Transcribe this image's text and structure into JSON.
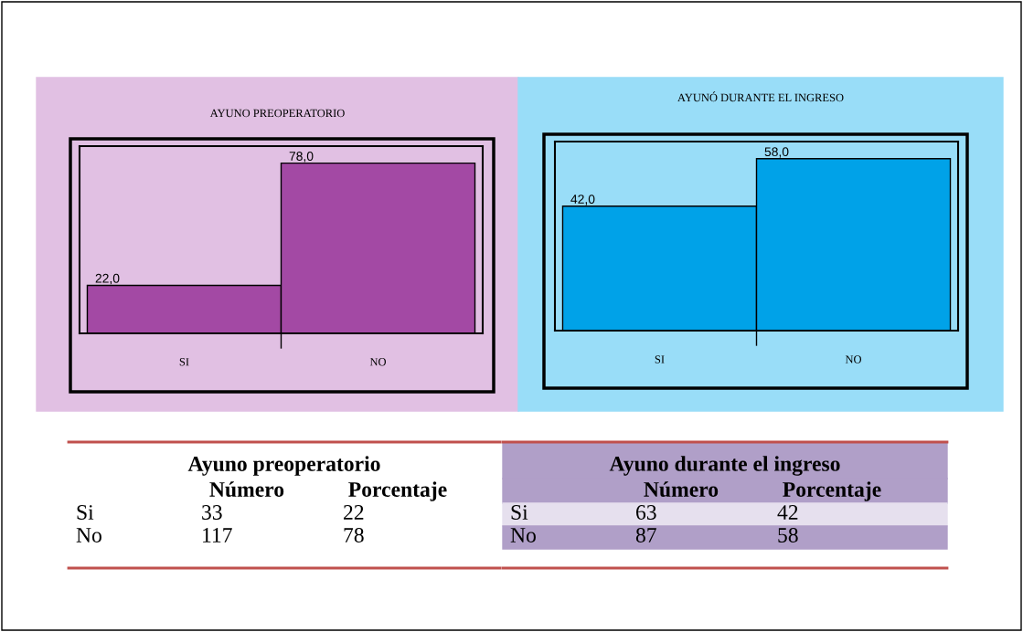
{
  "chart_data": [
    {
      "type": "bar",
      "title": "AYUNO PREOPERATORIO",
      "categories": [
        "SI",
        "NO"
      ],
      "values": [
        22,
        78
      ],
      "value_labels": [
        "22,0",
        "78,0"
      ],
      "color": "#a349a4",
      "grid": false,
      "legend": false,
      "annotations": [
        "Ayuno preoperatorio",
        "Número",
        "Porcentaje",
        "Si",
        "33",
        "22",
        "No",
        "117",
        "78"
      ]
    },
    {
      "type": "bar",
      "title": "AYUNÓ DURANTE EL INGRESO",
      "categories": [
        "SI",
        "NO"
      ],
      "values": [
        42,
        58
      ],
      "value_labels": [
        "42,0",
        "58,0"
      ],
      "color": "#00a2e8",
      "grid": false,
      "legend": false,
      "annotations": [
        "Ayuno durante el ingreso",
        "Número",
        "Porcentaje",
        "Si",
        "63",
        "42",
        "No",
        "87",
        "58"
      ]
    }
  ]
}
